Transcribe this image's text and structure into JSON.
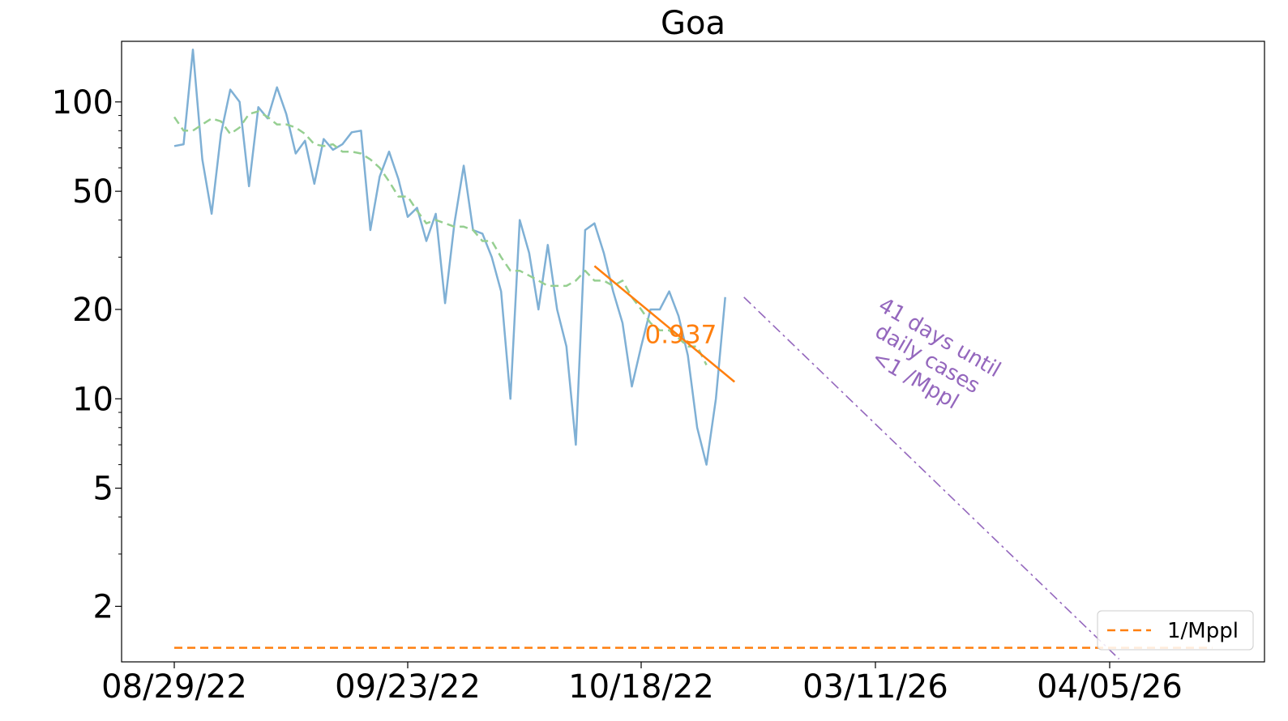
{
  "chart_data": {
    "type": "line",
    "title": "Goa",
    "xlabel": "",
    "ylabel": "",
    "y_scale": "log",
    "ylim": [
      1.3,
      160
    ],
    "grid": false,
    "x_tick_labels": [
      "08/29/22",
      "09/23/22",
      "10/18/22",
      "03/11/26",
      "04/05/26"
    ],
    "y_ticks": [
      2,
      5,
      10,
      20,
      50,
      100
    ],
    "y_tick_labels": [
      "2",
      "5",
      "10",
      "20",
      "50",
      "100"
    ],
    "series": [
      {
        "style": "solid",
        "color": "#7fb0d5",
        "start_date": "08/29/22",
        "values": [
          71,
          72,
          150,
          64,
          42,
          78,
          110,
          100,
          52,
          96,
          88,
          112,
          91,
          67,
          74,
          53,
          75,
          69,
          72,
          79,
          80,
          37,
          56,
          68,
          55,
          41,
          44,
          34,
          42,
          21,
          39,
          61,
          37,
          36,
          30,
          23,
          10,
          40,
          31,
          20,
          33,
          20,
          15,
          7,
          37,
          39,
          31,
          23,
          18,
          11,
          15,
          20,
          20,
          23,
          19,
          14,
          8,
          6,
          10,
          22
        ]
      },
      {
        "style": "dashed",
        "color": "#96cf91",
        "start_date": "08/29/22",
        "values": [
          89,
          80,
          80,
          84,
          88,
          86,
          78,
          82,
          91,
          93,
          89,
          84,
          84,
          82,
          78,
          72,
          71,
          72,
          68,
          68,
          67,
          64,
          60,
          54,
          48,
          48,
          43,
          39,
          40,
          39,
          38,
          38,
          37,
          34,
          34,
          30,
          27,
          27,
          26,
          25,
          24,
          24,
          24,
          25,
          27,
          25,
          25,
          24,
          25,
          22,
          20,
          18,
          17,
          17,
          16,
          15,
          15,
          13
        ]
      },
      {
        "name": "0.937",
        "style": "solid",
        "color": "#ff7f0e",
        "kind": "fit",
        "start_date": "10/13/22",
        "end_date": "10/28/22",
        "values": [
          28,
          11.4
        ]
      },
      {
        "style": "dashdot",
        "color": "#9467bd",
        "kind": "projection",
        "points": [
          [
            "10/29/22",
            22
          ],
          [
            "04/06/26",
            1.33
          ]
        ]
      },
      {
        "name": "1/Mppl",
        "style": "dashed",
        "color": "#ff7f0e",
        "kind": "threshold",
        "value": 1.45,
        "start_date": "08/29/22",
        "end_date": "04/16/26"
      }
    ],
    "annotations": [
      {
        "text": "0.937",
        "color": "#ff7f0e",
        "x": "10/21/22",
        "y": 16.5
      },
      {
        "lines": [
          "41 days until",
          "daily cases",
          "<1 /Mppl"
        ],
        "color": "#9467bd",
        "rotation": 30
      }
    ],
    "legend": {
      "position": "bottom-right",
      "entries": [
        "1/Mppl"
      ]
    }
  }
}
